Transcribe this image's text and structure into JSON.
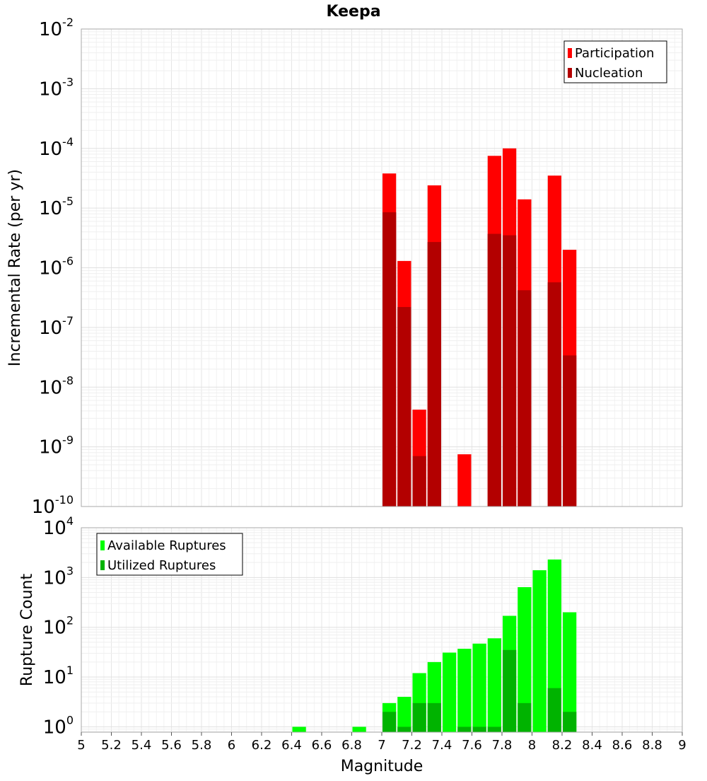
{
  "chart_data": [
    {
      "type": "bar",
      "title": "Keepa",
      "ylabel": "Incremental Rate (per yr)",
      "xlabel": "",
      "yscale": "log",
      "ylim": [
        1e-10,
        0.01
      ],
      "xlim": [
        5,
        9
      ],
      "grid": true,
      "legend_position": "top-right",
      "bar_width": 0.1,
      "y_tick_labels": [
        {
          "base": "10",
          "exp": "-10"
        },
        {
          "base": "10",
          "exp": "-9"
        },
        {
          "base": "10",
          "exp": "-8"
        },
        {
          "base": "10",
          "exp": "-7"
        },
        {
          "base": "10",
          "exp": "-6"
        },
        {
          "base": "10",
          "exp": "-5"
        },
        {
          "base": "10",
          "exp": "-4"
        },
        {
          "base": "10",
          "exp": "-3"
        },
        {
          "base": "10",
          "exp": "-2"
        }
      ],
      "series": [
        {
          "name": "Participation",
          "color": "#ff0000",
          "points": [
            {
              "x": 7.05,
              "y": 3.8e-05
            },
            {
              "x": 7.15,
              "y": 1.3e-06
            },
            {
              "x": 7.25,
              "y": 4.2e-09
            },
            {
              "x": 7.35,
              "y": 2.4e-05
            },
            {
              "x": 7.55,
              "y": 7.5e-10
            },
            {
              "x": 7.75,
              "y": 7.5e-05
            },
            {
              "x": 7.85,
              "y": 0.0001
            },
            {
              "x": 7.95,
              "y": 1.4e-05
            },
            {
              "x": 8.15,
              "y": 3.5e-05
            },
            {
              "x": 8.25,
              "y": 2e-06
            }
          ]
        },
        {
          "name": "Nucleation",
          "color": "#b30000",
          "points": [
            {
              "x": 7.05,
              "y": 8.5e-06
            },
            {
              "x": 7.15,
              "y": 2.2e-07
            },
            {
              "x": 7.25,
              "y": 7e-10
            },
            {
              "x": 7.35,
              "y": 2.7e-06
            },
            {
              "x": 7.75,
              "y": 3.7e-06
            },
            {
              "x": 7.85,
              "y": 3.5e-06
            },
            {
              "x": 7.95,
              "y": 4.2e-07
            },
            {
              "x": 8.15,
              "y": 5.7e-07
            },
            {
              "x": 8.25,
              "y": 3.4e-08
            }
          ]
        }
      ]
    },
    {
      "type": "bar",
      "title": "",
      "ylabel": "Rupture Count",
      "xlabel": "Magnitude",
      "yscale": "log",
      "ylim": [
        0.78,
        10000
      ],
      "xlim": [
        5,
        9
      ],
      "grid": true,
      "legend_position": "top-left",
      "bar_width": 0.1,
      "x_ticks": [
        "5",
        "5.2",
        "5.4",
        "5.6",
        "5.8",
        "6",
        "6.2",
        "6.4",
        "6.6",
        "6.8",
        "7",
        "7.2",
        "7.4",
        "7.6",
        "7.8",
        "8",
        "8.2",
        "8.4",
        "8.6",
        "8.8",
        "9"
      ],
      "y_tick_labels": [
        {
          "base": "10",
          "exp": "0"
        },
        {
          "base": "10",
          "exp": "1"
        },
        {
          "base": "10",
          "exp": "2"
        },
        {
          "base": "10",
          "exp": "3"
        },
        {
          "base": "10",
          "exp": "4"
        }
      ],
      "series": [
        {
          "name": "Available Ruptures",
          "color": "#00ff00",
          "points": [
            {
              "x": 6.45,
              "y": 1
            },
            {
              "x": 6.85,
              "y": 1
            },
            {
              "x": 7.05,
              "y": 3
            },
            {
              "x": 7.15,
              "y": 4
            },
            {
              "x": 7.25,
              "y": 12
            },
            {
              "x": 7.35,
              "y": 20
            },
            {
              "x": 7.45,
              "y": 31
            },
            {
              "x": 7.55,
              "y": 37
            },
            {
              "x": 7.65,
              "y": 47
            },
            {
              "x": 7.75,
              "y": 60
            },
            {
              "x": 7.85,
              "y": 170
            },
            {
              "x": 7.95,
              "y": 640
            },
            {
              "x": 8.05,
              "y": 1400
            },
            {
              "x": 8.15,
              "y": 2300
            },
            {
              "x": 8.25,
              "y": 200
            }
          ]
        },
        {
          "name": "Utilized Ruptures",
          "color": "#00b300",
          "points": [
            {
              "x": 7.05,
              "y": 2
            },
            {
              "x": 7.15,
              "y": 1
            },
            {
              "x": 7.25,
              "y": 3
            },
            {
              "x": 7.35,
              "y": 3
            },
            {
              "x": 7.55,
              "y": 1
            },
            {
              "x": 7.65,
              "y": 1
            },
            {
              "x": 7.75,
              "y": 1
            },
            {
              "x": 7.85,
              "y": 35
            },
            {
              "x": 7.95,
              "y": 3
            },
            {
              "x": 8.15,
              "y": 6
            },
            {
              "x": 8.25,
              "y": 2
            }
          ]
        }
      ]
    }
  ]
}
